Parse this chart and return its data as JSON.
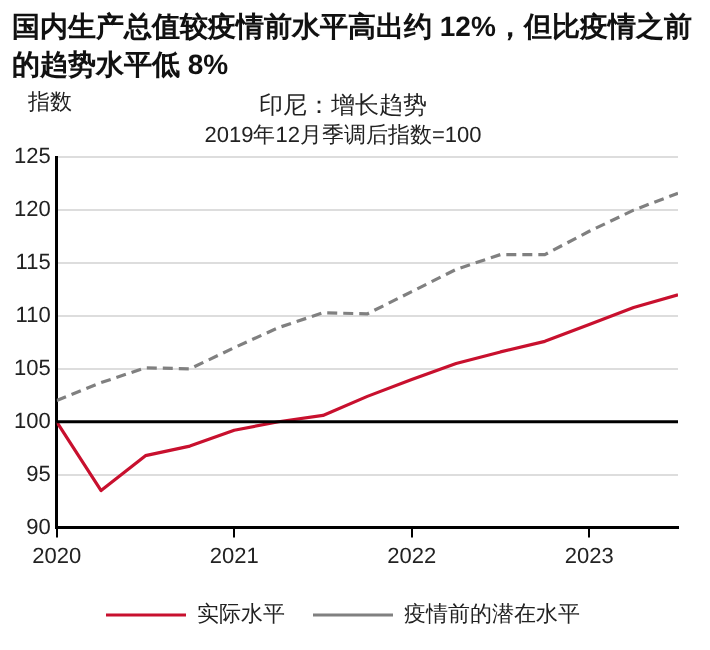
{
  "chart_data": {
    "type": "line",
    "title": "国内生产总值较疫情前水平高出约 12%，但比疫情之前的趋势水平低 8%",
    "subtitle": "印尼：增长趋势",
    "annotations": [
      "2019年12月季调后指数=100"
    ],
    "ylabel": "指数",
    "x": [
      2020,
      2020.25,
      2020.5,
      2020.75,
      2021,
      2021.25,
      2021.5,
      2021.75,
      2022,
      2022.25,
      2022.5,
      2022.75,
      2023,
      2023.25,
      2023.5
    ],
    "series": [
      {
        "name": "实际水平",
        "color": "#c8102e",
        "line_style": "solid",
        "values": [
          100,
          93.5,
          96.8,
          97.7,
          99.2,
          100.0,
          100.6,
          102.4,
          104.0,
          105.5,
          106.6,
          107.6,
          109.2,
          110.8,
          112.0
        ]
      },
      {
        "name": "疫情前的潜在水平",
        "color": "#808080",
        "line_style": "dashed",
        "values": [
          102.0,
          103.7,
          105.1,
          105.0,
          107.0,
          108.9,
          110.3,
          110.2,
          112.3,
          114.4,
          115.8,
          115.8,
          118.0,
          120.0,
          121.6
        ]
      }
    ],
    "xlim": [
      2020,
      2023.5
    ],
    "xticks": [
      2020,
      2021,
      2022,
      2023
    ],
    "ylim": [
      90,
      125
    ],
    "yticks": [
      90,
      95,
      100,
      105,
      110,
      115,
      120,
      125
    ],
    "ref_lines": [
      {
        "axis": "y",
        "value": 100,
        "color": "#000000"
      }
    ],
    "grid": "y",
    "legend": "bottom",
    "marker": "none"
  }
}
